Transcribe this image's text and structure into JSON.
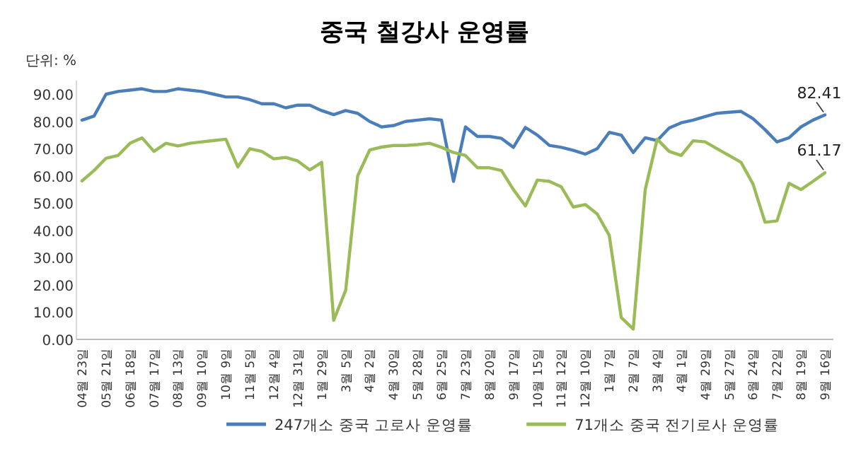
{
  "chart_data": {
    "type": "line",
    "title": "중국 철강사 운영률",
    "ylabel": "단위: %",
    "categories": [
      "04월 23일",
      null,
      "05월 21일",
      null,
      "06월 18일",
      null,
      "07월 17일",
      null,
      "08월 13일",
      null,
      "09월 10일",
      null,
      "10월 9일",
      null,
      "11월 5일",
      null,
      "12월 4일",
      null,
      "12월 31일",
      null,
      "1월 29일",
      null,
      "3월 5일",
      null,
      "4월 2일",
      null,
      "4월 30일",
      null,
      "5월 28일",
      null,
      "6월 25일",
      null,
      "7월 23일",
      null,
      "8월 20일",
      null,
      "9월 17일",
      null,
      "10월 15일",
      null,
      "11월 12일",
      null,
      "12월 10일",
      null,
      "1월 7일",
      null,
      "2월 7일",
      null,
      "3월 4일",
      null,
      "4월 1일",
      null,
      "4월 29일",
      null,
      "5월 27일",
      null,
      "6월 24일",
      null,
      "7월 22일",
      null,
      "8월 19일",
      null,
      "9월 16일"
    ],
    "series": [
      {
        "name": "247개소 중국 고로사 운영률",
        "color": "#4a7ebb",
        "values": [
          80.5,
          82,
          90,
          91,
          91.5,
          92,
          91,
          91,
          92,
          91.5,
          91,
          90,
          89,
          89,
          88,
          86.5,
          86.5,
          85,
          86,
          86,
          84,
          82.5,
          84,
          83,
          80,
          78,
          78.5,
          80,
          80.5,
          81,
          80.5,
          58,
          78,
          74.5,
          74.5,
          73.8,
          70.5,
          77.8,
          75,
          71.2,
          70.5,
          69.4,
          68,
          70,
          76,
          75,
          68.6,
          74,
          73,
          77.6,
          79.5,
          80.5,
          81.8,
          83,
          83.4,
          83.7,
          81,
          77,
          72.5,
          74,
          78,
          80.5,
          82.41
        ]
      },
      {
        "name": "71개소 중국 전기로사 운영률",
        "color": "#9bbb59",
        "values": [
          58.2,
          62,
          66.5,
          67.5,
          72,
          74,
          69,
          72,
          71,
          72,
          72.5,
          73,
          73.5,
          63.3,
          70,
          69,
          66.3,
          66.8,
          65.5,
          62.2,
          65,
          7,
          18,
          60,
          69.5,
          70.6,
          71.2,
          71.2,
          71.5,
          72,
          70.5,
          68.6,
          67.5,
          63,
          63,
          62,
          55,
          49,
          58.5,
          58,
          56,
          48.6,
          49.5,
          46,
          38.2,
          8,
          3.8,
          55,
          73.5,
          69,
          67.5,
          72.9,
          72.5,
          70,
          67.5,
          65,
          57,
          43,
          43.5,
          57.3,
          55,
          58,
          61.17
        ]
      }
    ],
    "ylim": [
      0,
      95
    ],
    "yticks": [
      {
        "value": 0,
        "label": "0.00"
      },
      {
        "value": 10,
        "label": "10.00"
      },
      {
        "value": 20,
        "label": "20.00"
      },
      {
        "value": 30,
        "label": "30.00"
      },
      {
        "value": 40,
        "label": "40.00"
      },
      {
        "value": 50,
        "label": "50.00"
      },
      {
        "value": 60,
        "label": "60.00"
      },
      {
        "value": 70,
        "label": "70.00"
      },
      {
        "value": 80,
        "label": "80.00"
      },
      {
        "value": 90,
        "label": "90.00"
      }
    ],
    "legend": "bottom",
    "annotations": [
      {
        "text": "82.41",
        "x": "9월 16일",
        "y": 82.41
      },
      {
        "text": "61.17",
        "x": "9월 16일",
        "y": 61.17
      }
    ]
  }
}
